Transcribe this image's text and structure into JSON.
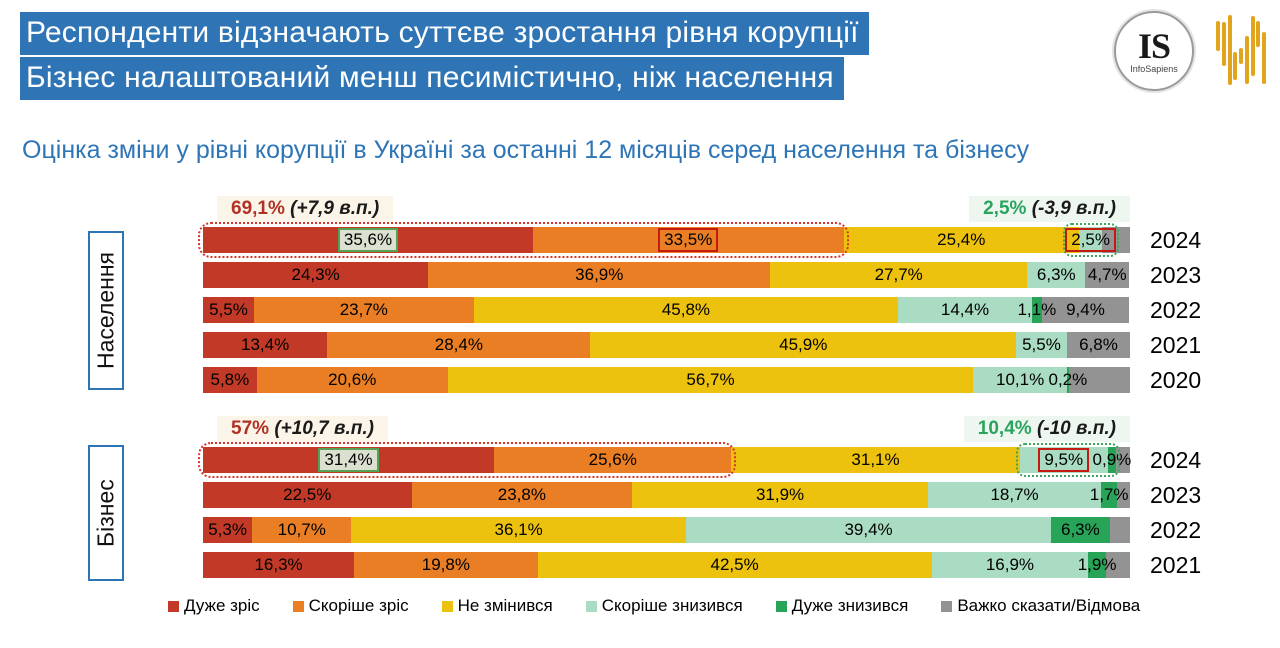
{
  "header": {
    "line1": "Респонденти відзначають суттєве зростання рівня корупції",
    "line2": "Бізнес налаштований менш песимістично, ніж населення"
  },
  "logo": {
    "initials": "IS",
    "name": "InfoSapiens"
  },
  "subtitle": "Оцінка зміни у рівні корупції в Україні за останні 12 місяців серед населення та бізнесу",
  "chart_data": {
    "type": "bar",
    "stacked": true,
    "orientation": "horizontal",
    "unit": "%",
    "xlim": [
      0,
      100
    ],
    "series_names": [
      "Дуже зріс",
      "Скоріше зріс",
      "Не змінився",
      "Скоріше знизився",
      "Дуже знизився",
      "Важко сказати/Відмова"
    ],
    "colors": [
      "#c23a27",
      "#e97e24",
      "#edc20e",
      "#a9dcc2",
      "#28a458",
      "#939393"
    ],
    "legend_position": "bottom",
    "groups": [
      {
        "name": "Населення",
        "annotation_left": {
          "value": "69,1%",
          "change": "(+7,9 в.п.)"
        },
        "annotation_right": {
          "value": "2,5%",
          "change": "(-3,9 в.п.)"
        },
        "rows": [
          {
            "year": "2024",
            "values": [
              35.6,
              33.5,
              25.4,
              2.5,
              0,
              3.0
            ],
            "labels": [
              "35,6%",
              "33,5%",
              "25,4%",
              "2,5%",
              "",
              ""
            ],
            "boxes": {
              "0": "green",
              "1": "red",
              "3": "red"
            },
            "outline_increase": true,
            "outline_decrease": true
          },
          {
            "year": "2023",
            "values": [
              24.3,
              36.9,
              27.7,
              6.3,
              0,
              4.7
            ],
            "labels": [
              "24,3%",
              "36,9%",
              "27,7%",
              "6,3%",
              "",
              "4,7%"
            ]
          },
          {
            "year": "2022",
            "values": [
              5.5,
              23.7,
              45.8,
              14.4,
              1.1,
              9.4
            ],
            "labels": [
              "5,5%",
              "23,7%",
              "45,8%",
              "14,4%",
              "1,1%",
              "9,4%"
            ]
          },
          {
            "year": "2021",
            "values": [
              13.4,
              28.4,
              45.9,
              5.5,
              0,
              6.8
            ],
            "labels": [
              "13,4%",
              "28,4%",
              "45,9%",
              "5,5%",
              "",
              "6,8%"
            ]
          },
          {
            "year": "2020",
            "values": [
              5.8,
              20.6,
              56.7,
              10.1,
              0.2,
              6.6
            ],
            "labels": [
              "5,8%",
              "20,6%",
              "56,7%",
              "10,1%",
              "0,2%",
              ""
            ]
          }
        ]
      },
      {
        "name": "Бізнес",
        "annotation_left": {
          "value": "57%",
          "change": "(+10,7 в.п.)"
        },
        "annotation_right": {
          "value": "10,4%",
          "change": "(-10 в.п.)"
        },
        "rows": [
          {
            "year": "2024",
            "values": [
              31.4,
              25.6,
              31.1,
              9.5,
              0.9,
              1.5
            ],
            "labels": [
              "31,4%",
              "25,6%",
              "31,1%",
              "9,5%",
              "0,9%",
              ""
            ],
            "boxes": {
              "0": "green",
              "3": "red"
            },
            "outline_increase": true,
            "outline_decrease": true
          },
          {
            "year": "2023",
            "values": [
              22.5,
              23.8,
              31.9,
              18.7,
              1.7,
              1.4
            ],
            "labels": [
              "22,5%",
              "23,8%",
              "31,9%",
              "18,7%",
              "1,7%",
              ""
            ]
          },
          {
            "year": "2022",
            "values": [
              5.3,
              10.7,
              36.1,
              39.4,
              6.3,
              2.2
            ],
            "labels": [
              "5,3%",
              "10,7%",
              "36,1%",
              "39,4%",
              "6,3%",
              ""
            ]
          },
          {
            "year": "2021",
            "values": [
              16.3,
              19.8,
              42.5,
              16.9,
              1.9,
              2.6
            ],
            "labels": [
              "16,3%",
              "19,8%",
              "42,5%",
              "16,9%",
              "1,9%",
              ""
            ]
          }
        ]
      }
    ]
  }
}
